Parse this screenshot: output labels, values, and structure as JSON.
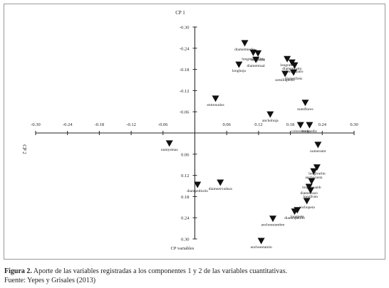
{
  "chart_data": {
    "type": "scatter",
    "y_label": "CP 1",
    "x_label": "CP 2",
    "axis_note": "CP variables",
    "xlim": [
      -0.3,
      0.3
    ],
    "ylim": [
      0.3,
      -0.3
    ],
    "xticks": [
      {
        "value": -0.3,
        "label": "-0.30"
      },
      -0.24,
      -0.18,
      -0.12,
      -0.06,
      0.06,
      0.12,
      0.18,
      0.24,
      {
        "value": 0.3,
        "label": "0.30"
      }
    ],
    "yticks": [
      {
        "value": -0.3,
        "label": "-0.30"
      },
      -0.24,
      -0.18,
      -0.12,
      -0.06,
      0.06,
      0.12,
      0.18,
      0.24,
      {
        "value": 0.3,
        "label": "0.30"
      }
    ],
    "color": "#111111",
    "x": [
      0.094,
      0.11,
      0.119,
      0.115,
      0.083,
      0.174,
      0.183,
      0.188,
      0.186,
      0.17,
      0.039,
      0.208,
      0.142,
      0.199,
      0.216,
      -0.048,
      0.232,
      0.23,
      0.224,
      0.22,
      0.215,
      0.218,
      0.211,
      0.193,
      0.188,
      0.147,
      0.125,
      0.005,
      0.048
    ],
    "values": [
      -0.254,
      -0.227,
      -0.225,
      -0.207,
      -0.193,
      -0.209,
      -0.199,
      -0.191,
      -0.171,
      -0.167,
      -0.097,
      -0.085,
      -0.052,
      -0.022,
      -0.022,
      0.03,
      0.034,
      0.098,
      0.109,
      0.137,
      0.153,
      0.163,
      0.193,
      0.219,
      0.223,
      0.243,
      0.306,
      0.147,
      0.141
    ],
    "point_labels": [
      "diametmedio",
      "longmacambia",
      "longcaliz",
      "diametmsal",
      "longhoja",
      "longratio",
      "diametfrutio",
      "longsepalo",
      "diametfreis",
      "semillapedic",
      "entrenudos",
      "numflores",
      "anchohoja",
      "colorotrode",
      "longpedic",
      "numyemas",
      "numeramt",
      "longfrutlin",
      "anchocasta",
      "longcosamb",
      "diametrazo",
      "longfruto",
      "anchopeta",
      "longpeta",
      "diametpistilo",
      "anchoestambre",
      "anchoestamin",
      "diampedicelo",
      "diamnervadura"
    ],
    "caption_bold": "Figura 2.",
    "caption": "Aporte de las variables registradas a los componentes 1 y 2 de las variables cuantitativas.",
    "source": "Fuente: Yepes y Grisales (2013)"
  }
}
